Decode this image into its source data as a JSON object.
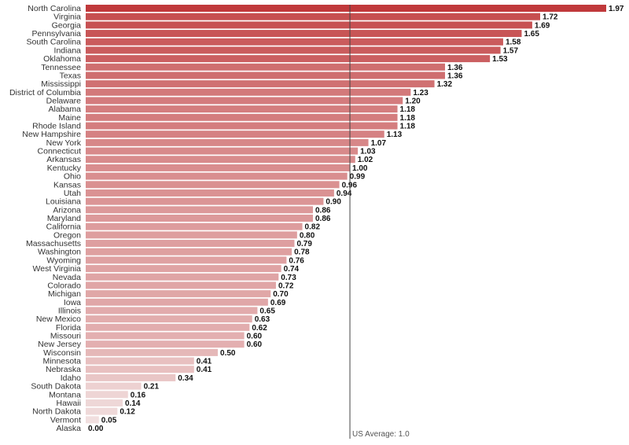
{
  "chart_data": {
    "type": "bar",
    "orientation": "horizontal",
    "categories": [
      "North Carolina",
      "Virginia",
      "Georgia",
      "Pennsylvania",
      "South Carolina",
      "Indiana",
      "Oklahoma",
      "Tennessee",
      "Texas",
      "Mississippi",
      "District of Columbia",
      "Delaware",
      "Alabama",
      "Maine",
      "Rhode Island",
      "New Hampshire",
      "New York",
      "Connecticut",
      "Arkansas",
      "Kentucky",
      "Ohio",
      "Kansas",
      "Utah",
      "Louisiana",
      "Arizona",
      "Maryland",
      "California",
      "Oregon",
      "Massachusetts",
      "Washington",
      "Wyoming",
      "West Virginia",
      "Nevada",
      "Colorado",
      "Michigan",
      "Iowa",
      "Illinois",
      "New Mexico",
      "Florida",
      "Missouri",
      "New Jersey",
      "Wisconsin",
      "Minnesota",
      "Nebraska",
      "Idaho",
      "South Dakota",
      "Montana",
      "Hawaii",
      "North Dakota",
      "Vermont",
      "Alaska"
    ],
    "values": [
      1.97,
      1.72,
      1.69,
      1.65,
      1.58,
      1.57,
      1.53,
      1.36,
      1.36,
      1.32,
      1.23,
      1.2,
      1.18,
      1.18,
      1.18,
      1.13,
      1.07,
      1.03,
      1.02,
      1.0,
      0.99,
      0.96,
      0.94,
      0.9,
      0.86,
      0.86,
      0.82,
      0.8,
      0.79,
      0.78,
      0.76,
      0.74,
      0.73,
      0.72,
      0.7,
      0.69,
      0.65,
      0.63,
      0.62,
      0.6,
      0.6,
      0.5,
      0.41,
      0.41,
      0.34,
      0.21,
      0.16,
      0.14,
      0.12,
      0.05,
      0.0
    ],
    "value_labels": [
      "1.97",
      "1.72",
      "1.69",
      "1.65",
      "1.58",
      "1.57",
      "1.53",
      "1.36",
      "1.36",
      "1.32",
      "1.23",
      "1.20",
      "1.18",
      "1.18",
      "1.18",
      "1.13",
      "1.07",
      "1.03",
      "1.02",
      "1.00",
      "0.99",
      "0.96",
      "0.94",
      "0.90",
      "0.86",
      "0.86",
      "0.82",
      "0.80",
      "0.79",
      "0.78",
      "0.76",
      "0.74",
      "0.73",
      "0.72",
      "0.70",
      "0.69",
      "0.65",
      "0.63",
      "0.62",
      "0.60",
      "0.60",
      "0.50",
      "0.41",
      "0.41",
      "0.34",
      "0.21",
      "0.16",
      "0.14",
      "0.12",
      "0.05",
      "0.00"
    ],
    "xlim": [
      0,
      1.97
    ],
    "reference_line": {
      "value": 1.0,
      "label": "US Average: 1.0"
    },
    "colors": {
      "max": "#c0393b",
      "min": "#f2e3e3",
      "reference_line": "#444444"
    },
    "grid": false,
    "legend": "none",
    "title": "",
    "xlabel": "",
    "ylabel": ""
  }
}
